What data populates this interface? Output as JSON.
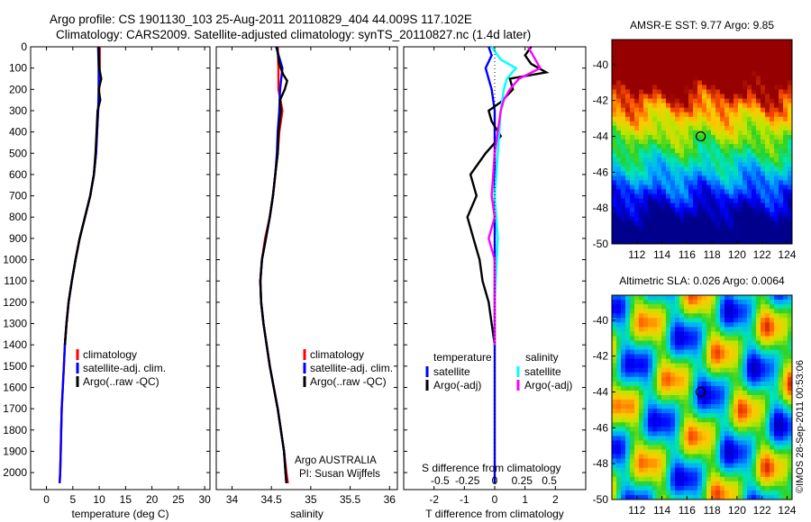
{
  "header": {
    "line1": "Argo profile: CS 1901130_103 25-Aug-2011 20110829_404 44.009S 117.102E",
    "line2": "Climatology: CARS2009. Satellite-adjusted climatology: synTS_20110827.nc (1.4d later)"
  },
  "credit": "©IMOS 28-Sep-2011 00:53:06",
  "colors": {
    "climatology": "#ff0000",
    "satellite": "#0000ff",
    "argo": "#000000",
    "sal_satellite": "#00ffff",
    "sal_argo": "#ff00ff"
  },
  "chart_data": [
    {
      "type": "line",
      "xlabel": "temperature (deg C)",
      "ylabel": "",
      "xlim": [
        -3,
        31
      ],
      "ylim": [
        2080,
        0
      ],
      "xticks": [
        0,
        5,
        10,
        15,
        20,
        25,
        30
      ],
      "yticks": [
        0,
        100,
        200,
        300,
        400,
        500,
        600,
        700,
        800,
        900,
        1000,
        1100,
        1200,
        1300,
        1400,
        1500,
        1600,
        1700,
        1800,
        1900,
        2000
      ],
      "legend": {
        "labels": [
          "climatology",
          "satellite-adj. clim.",
          "Argo(..raw -QC)"
        ]
      },
      "series": [
        {
          "name": "climatology",
          "color_key": "climatology",
          "points": [
            [
              10.1,
              0
            ],
            [
              10.1,
              100
            ],
            [
              10.0,
              200
            ],
            [
              9.8,
              300
            ],
            [
              9.6,
              400
            ],
            [
              9.4,
              500
            ],
            [
              9.0,
              600
            ],
            [
              8.3,
              700
            ],
            [
              7.3,
              800
            ],
            [
              6.3,
              900
            ],
            [
              5.5,
              1000
            ],
            [
              4.8,
              1100
            ],
            [
              4.2,
              1200
            ],
            [
              3.8,
              1300
            ],
            [
              3.5,
              1400
            ],
            [
              3.3,
              1500
            ],
            [
              3.1,
              1600
            ],
            [
              2.9,
              1700
            ],
            [
              2.8,
              1800
            ],
            [
              2.7,
              1900
            ],
            [
              2.6,
              2000
            ],
            [
              2.5,
              2050
            ]
          ]
        },
        {
          "name": "satellite-adj. clim.",
          "color_key": "satellite",
          "points": [
            [
              9.8,
              0
            ],
            [
              9.9,
              100
            ],
            [
              9.9,
              200
            ],
            [
              9.8,
              300
            ],
            [
              9.6,
              400
            ],
            [
              9.4,
              500
            ],
            [
              9.0,
              600
            ],
            [
              8.3,
              700
            ],
            [
              7.3,
              800
            ],
            [
              6.3,
              900
            ],
            [
              5.5,
              1000
            ],
            [
              4.8,
              1100
            ],
            [
              4.2,
              1200
            ],
            [
              3.8,
              1300
            ],
            [
              3.5,
              1400
            ],
            [
              3.3,
              1500
            ],
            [
              3.1,
              1600
            ],
            [
              2.9,
              1700
            ],
            [
              2.8,
              1800
            ],
            [
              2.7,
              1900
            ],
            [
              2.6,
              2000
            ],
            [
              2.5,
              2050
            ]
          ]
        },
        {
          "name": "Argo(..raw -QC)",
          "color_key": "argo",
          "points": [
            [
              9.9,
              0
            ],
            [
              10.0,
              100
            ],
            [
              10.4,
              150
            ],
            [
              9.9,
              200
            ],
            [
              10.2,
              250
            ],
            [
              9.7,
              300
            ],
            [
              9.5,
              400
            ],
            [
              9.3,
              500
            ],
            [
              9.0,
              600
            ],
            [
              8.3,
              700
            ],
            [
              7.3,
              800
            ],
            [
              6.3,
              900
            ],
            [
              5.5,
              1000
            ],
            [
              4.8,
              1100
            ],
            [
              4.2,
              1200
            ],
            [
              3.8,
              1300
            ],
            [
              3.5,
              1400
            ]
          ]
        }
      ]
    },
    {
      "type": "line",
      "xlabel": "salinity",
      "ylabel": "",
      "xlim": [
        33.8,
        36.1
      ],
      "ylim": [
        2080,
        0
      ],
      "xticks": [
        34,
        34.5,
        35,
        35.5,
        36
      ],
      "legend": {
        "labels": [
          "climatology",
          "satellite-adj. clim.",
          "Argo(..raw -QC)"
        ]
      },
      "annotation": [
        "Argo AUSTRALIA",
        "PI: Susan Wijffels"
      ],
      "series": [
        {
          "name": "climatology",
          "color_key": "climatology",
          "points": [
            [
              34.58,
              0
            ],
            [
              34.59,
              100
            ],
            [
              34.59,
              200
            ],
            [
              34.64,
              300
            ],
            [
              34.6,
              400
            ],
            [
              34.58,
              500
            ],
            [
              34.55,
              600
            ],
            [
              34.52,
              700
            ],
            [
              34.48,
              800
            ],
            [
              34.42,
              900
            ],
            [
              34.38,
              1000
            ],
            [
              34.36,
              1100
            ],
            [
              34.37,
              1200
            ],
            [
              34.4,
              1300
            ],
            [
              34.44,
              1400
            ],
            [
              34.48,
              1500
            ],
            [
              34.53,
              1600
            ],
            [
              34.58,
              1700
            ],
            [
              34.62,
              1800
            ],
            [
              34.66,
              1900
            ],
            [
              34.69,
              2000
            ],
            [
              34.71,
              2050
            ]
          ]
        },
        {
          "name": "satellite-adj. clim.",
          "color_key": "satellite",
          "points": [
            [
              34.56,
              0
            ],
            [
              34.6,
              50
            ],
            [
              34.64,
              100
            ],
            [
              34.61,
              200
            ],
            [
              34.6,
              300
            ],
            [
              34.58,
              400
            ],
            [
              34.57,
              500
            ],
            [
              34.55,
              600
            ],
            [
              34.52,
              700
            ],
            [
              34.48,
              800
            ],
            [
              34.43,
              900
            ],
            [
              34.38,
              1000
            ],
            [
              34.36,
              1100
            ],
            [
              34.37,
              1200
            ],
            [
              34.4,
              1300
            ],
            [
              34.44,
              1400
            ],
            [
              34.48,
              1500
            ],
            [
              34.53,
              1600
            ],
            [
              34.58,
              1700
            ],
            [
              34.62,
              1800
            ],
            [
              34.66,
              1900
            ],
            [
              34.68,
              2000
            ],
            [
              34.69,
              2050
            ]
          ]
        },
        {
          "name": "Argo(..raw -QC)",
          "color_key": "argo",
          "points": [
            [
              34.57,
              0
            ],
            [
              34.6,
              80
            ],
            [
              34.65,
              130
            ],
            [
              34.7,
              160
            ],
            [
              34.67,
              200
            ],
            [
              34.61,
              250
            ],
            [
              34.62,
              300
            ],
            [
              34.59,
              400
            ],
            [
              34.58,
              500
            ],
            [
              34.55,
              600
            ],
            [
              34.52,
              700
            ],
            [
              34.48,
              800
            ],
            [
              34.43,
              900
            ],
            [
              34.38,
              1000
            ],
            [
              34.36,
              1100
            ],
            [
              34.37,
              1200
            ],
            [
              34.4,
              1300
            ],
            [
              34.44,
              1400
            ],
            [
              34.48,
              1500
            ],
            [
              34.53,
              1600
            ],
            [
              34.58,
              1700
            ],
            [
              34.62,
              1800
            ],
            [
              34.66,
              1900
            ],
            [
              34.68,
              2000
            ],
            [
              34.69,
              2050
            ]
          ]
        }
      ]
    },
    {
      "type": "line",
      "xlabel": "T difference from climatology",
      "xlabel_top": "S difference from climatology",
      "ylabel": "",
      "xlim": [
        -3,
        3
      ],
      "ylim": [
        2080,
        0
      ],
      "xticks": [
        -2,
        -1,
        0,
        1,
        2
      ],
      "xtick_labels": [
        "-2",
        "-1",
        "0",
        "1",
        "2"
      ],
      "xticks_top": [
        -1.8,
        -0.9,
        0,
        0.9,
        1.8
      ],
      "xtick_labels_top": [
        "-0.5",
        "-0.25",
        "0",
        "0.25",
        "0.5"
      ],
      "legend": {
        "left_title": "temperature",
        "left_labels": [
          "satellite",
          "Argo(-adj)"
        ],
        "right_title": "salinity",
        "right_labels": [
          "satellite",
          "Argo(-adj)"
        ]
      },
      "series": [
        {
          "name": "T satellite",
          "color_key": "satellite",
          "points": [
            [
              -0.2,
              0
            ],
            [
              -0.1,
              40
            ],
            [
              -0.3,
              100
            ],
            [
              -0.1,
              200
            ],
            [
              0,
              300
            ],
            [
              0,
              500
            ],
            [
              0,
              800
            ],
            [
              0,
              1100
            ],
            [
              0,
              1500
            ],
            [
              0,
              2050
            ]
          ]
        },
        {
          "name": "T Argo(-adj)",
          "color_key": "argo",
          "points": [
            [
              1.2,
              0
            ],
            [
              1.0,
              40
            ],
            [
              1.2,
              80
            ],
            [
              1.7,
              120
            ],
            [
              0.5,
              150
            ],
            [
              0.6,
              200
            ],
            [
              0.2,
              260
            ],
            [
              -0.2,
              300
            ],
            [
              -0.1,
              350
            ],
            [
              0.2,
              420
            ],
            [
              -0.3,
              500
            ],
            [
              -0.8,
              600
            ],
            [
              -0.6,
              700
            ],
            [
              -0.9,
              800
            ],
            [
              -0.7,
              900
            ],
            [
              -0.5,
              1000
            ],
            [
              -0.4,
              1100
            ],
            [
              -0.2,
              1200
            ],
            [
              -0.1,
              1300
            ],
            [
              0,
              1400
            ]
          ]
        },
        {
          "name": "S satellite",
          "color_key": "sal_satellite",
          "points": [
            [
              -0.1,
              0
            ],
            [
              0.2,
              60
            ],
            [
              0.7,
              100
            ],
            [
              0.4,
              150
            ],
            [
              0.3,
              200
            ],
            [
              0.2,
              300
            ],
            [
              0.1,
              500
            ],
            [
              0,
              700
            ],
            [
              0.1,
              900
            ],
            [
              0,
              1200
            ],
            [
              0,
              1400
            ]
          ]
        },
        {
          "name": "S Argo(-adj)",
          "color_key": "sal_argo",
          "points": [
            [
              1.1,
              0
            ],
            [
              1.3,
              50
            ],
            [
              1.5,
              100
            ],
            [
              0.8,
              150
            ],
            [
              0.5,
              200
            ],
            [
              0.3,
              250
            ],
            [
              0.2,
              300
            ],
            [
              0.1,
              400
            ],
            [
              0,
              500
            ],
            [
              -0.1,
              700
            ],
            [
              0,
              800
            ],
            [
              -0.2,
              900
            ],
            [
              0,
              1000
            ],
            [
              0,
              1200
            ],
            [
              0,
              1400
            ]
          ]
        }
      ]
    },
    {
      "type": "heatmap",
      "title": "AMSR-E SST: 9.77 Argo: 9.85",
      "xlim": [
        110,
        124.4
      ],
      "ylim": [
        -50,
        -38.6
      ],
      "xticks": [
        112,
        114,
        116,
        118,
        120,
        122,
        124
      ],
      "yticks": [
        -40,
        -42,
        -44,
        -46,
        -48,
        -50
      ],
      "marker": {
        "lon": 117.1,
        "lat": -44.0
      }
    },
    {
      "type": "heatmap",
      "title": "Altimetric SLA: 0.026 Argo: 0.0064",
      "xlim": [
        110,
        124.4
      ],
      "ylim": [
        -50,
        -38.6
      ],
      "xticks": [
        112,
        114,
        116,
        118,
        120,
        122,
        124
      ],
      "yticks": [
        -40,
        -42,
        -44,
        -46,
        -48,
        -50
      ],
      "marker": {
        "lon": 117.1,
        "lat": -44.0
      }
    }
  ]
}
